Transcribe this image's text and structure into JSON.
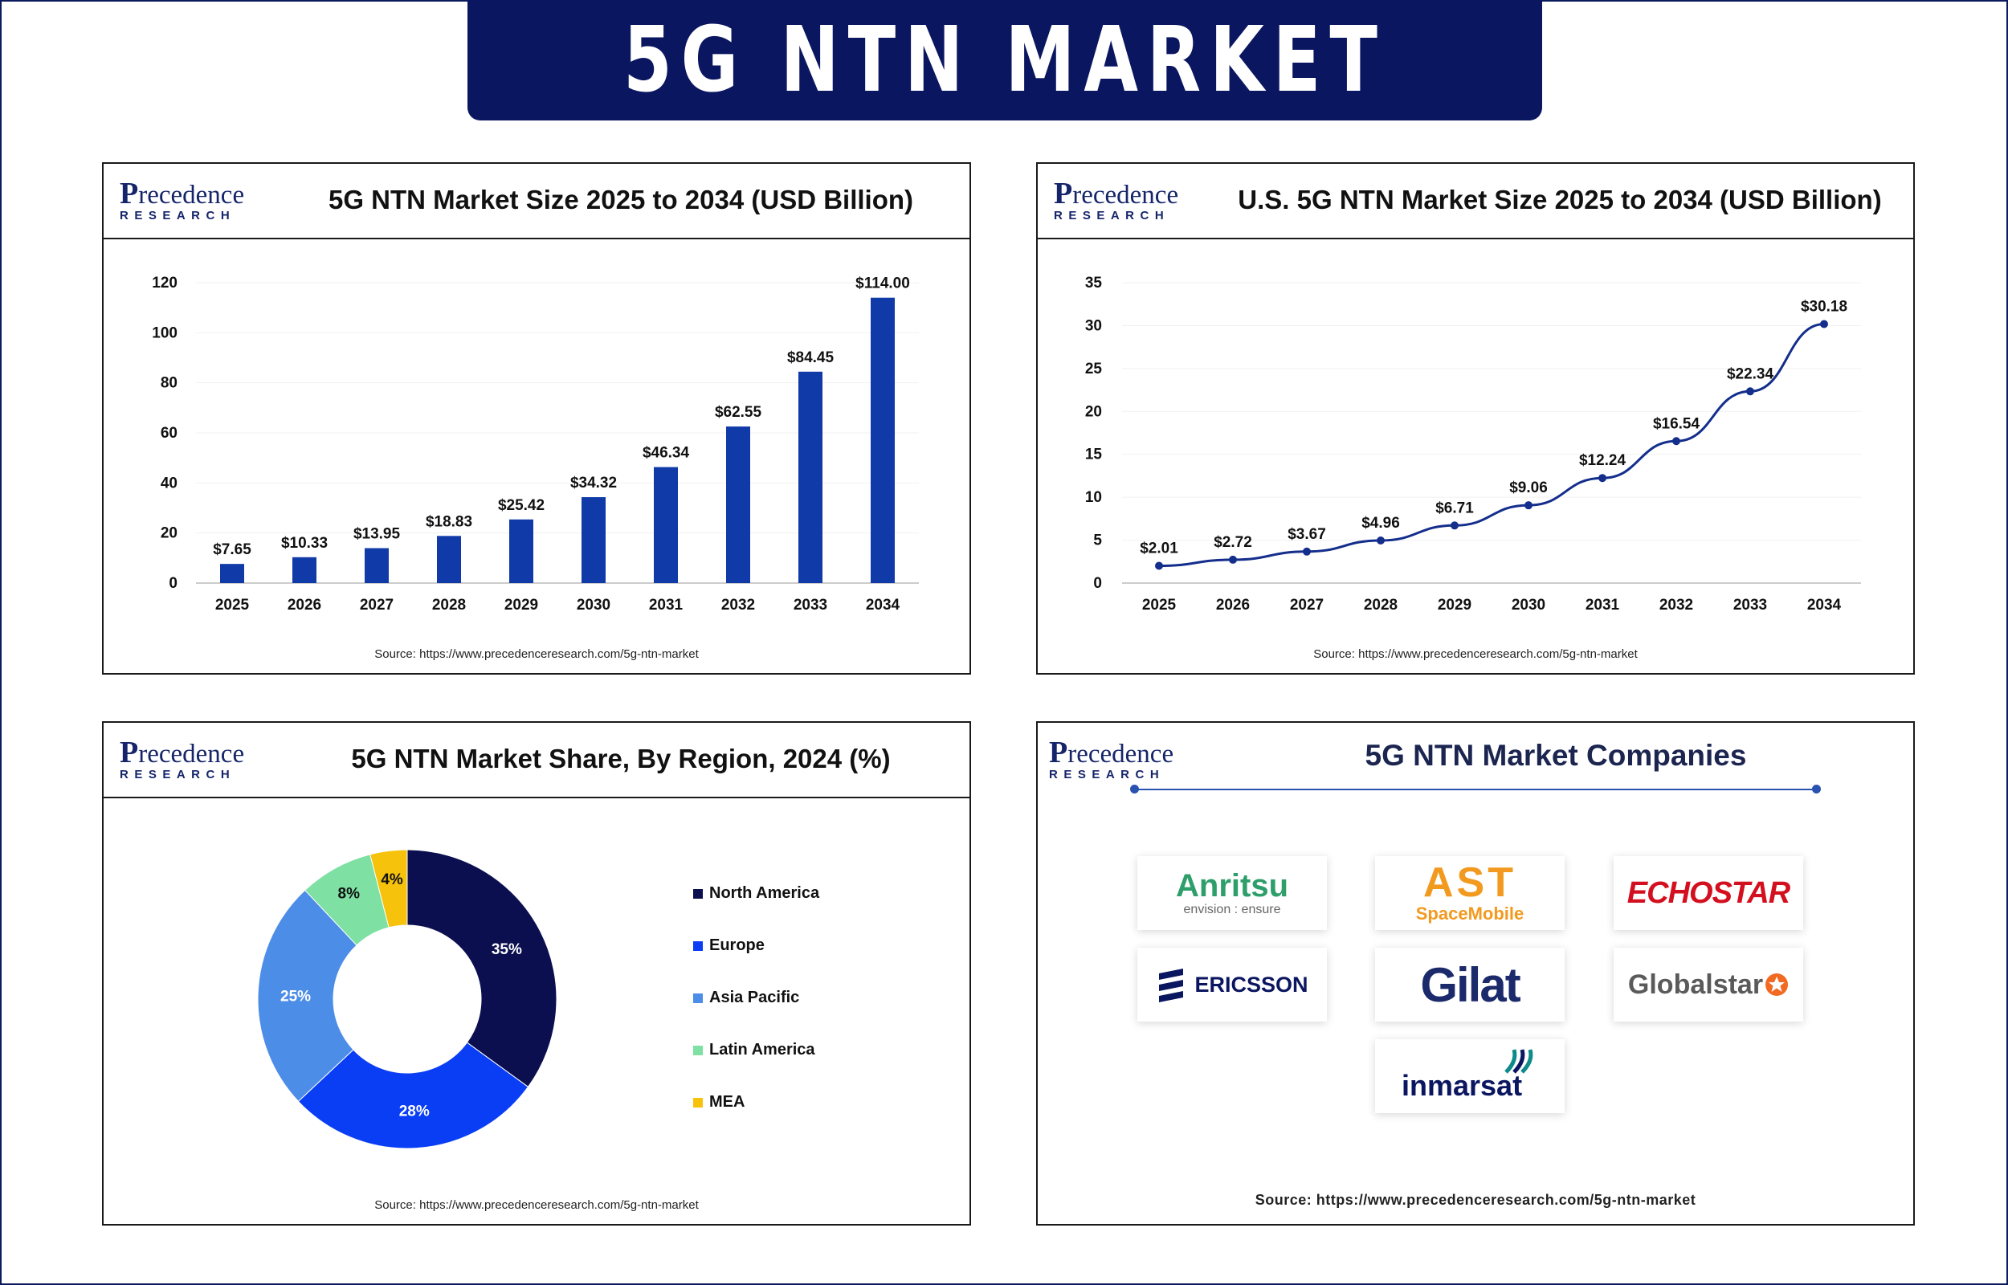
{
  "banner": {
    "title": "5G NTN MARKET"
  },
  "logo": {
    "top": "recedence",
    "p": "P",
    "bottom": "RESEARCH"
  },
  "source_text": "Source: https://www.precedenceresearch.com/5g-ntn-market",
  "colors": {
    "navy": "#0b1660",
    "bar": "#0f3aa8",
    "line": "#142e8c",
    "echostar": "#d3101f",
    "gilat": "#1b2a6b"
  },
  "chart_data": [
    {
      "type": "bar",
      "title": "5G NTN Market Size 2025 to 2034 (USD Billion)",
      "categories": [
        "2025",
        "2026",
        "2027",
        "2028",
        "2029",
        "2030",
        "2031",
        "2032",
        "2033",
        "2034"
      ],
      "values": [
        7.65,
        10.33,
        13.95,
        18.83,
        25.42,
        34.32,
        46.34,
        62.55,
        84.45,
        114.0
      ],
      "data_labels": [
        "$7.65",
        "$10.33",
        "$13.95",
        "$18.83",
        "$25.42",
        "$34.32",
        "$46.34",
        "$62.55",
        "$84.45",
        "$114.00"
      ],
      "ylim": [
        0,
        120
      ],
      "yticks": [
        "0",
        "20",
        "40",
        "60",
        "80",
        "100",
        "120"
      ],
      "grid": true
    },
    {
      "type": "line",
      "title": "U.S. 5G NTN Market  Size 2025 to 2034 (USD Billion)",
      "categories": [
        "2025",
        "2026",
        "2027",
        "2028",
        "2029",
        "2030",
        "2031",
        "2032",
        "2033",
        "2034"
      ],
      "values": [
        2.01,
        2.72,
        3.67,
        4.96,
        6.71,
        9.06,
        12.24,
        16.54,
        22.34,
        30.18
      ],
      "data_labels": [
        "$2.01",
        "$2.72",
        "$3.67",
        "$4.96",
        "$6.71",
        "$9.06",
        "$12.24",
        "$16.54",
        "$22.34",
        "$30.18"
      ],
      "ylim": [
        0,
        35
      ],
      "yticks": [
        "0",
        "5",
        "10",
        "15",
        "20",
        "25",
        "30",
        "35"
      ],
      "grid": true
    },
    {
      "type": "pie",
      "title": "5G NTN Market Share, By Region, 2024 (%)",
      "categories": [
        "North America",
        "Europe",
        "Asia Pacific",
        "Latin America",
        "MEA"
      ],
      "values": [
        35,
        28,
        25,
        8,
        4
      ],
      "data_labels": [
        "35%",
        "28%",
        "25%",
        "8%",
        "4%"
      ],
      "colors": [
        "#0b0f4f",
        "#0a3ef5",
        "#4c8de8",
        "#7ee0a2",
        "#f7c20c"
      ],
      "legend_position": "right"
    }
  ],
  "companies": {
    "title": "5G NTN Market Companies",
    "anritsu": {
      "name": "Anritsu",
      "tagline": "envision : ensure"
    },
    "ast": {
      "name": "AST",
      "sub": "SpaceMobile"
    },
    "echostar": {
      "name": "ECHOSTAR"
    },
    "ericsson": {
      "name": "ERICSSON"
    },
    "gilat": {
      "name": "Gilat"
    },
    "globalstar": {
      "name": "Globalstar"
    },
    "inmarsat": {
      "name": "inmarsat"
    }
  }
}
